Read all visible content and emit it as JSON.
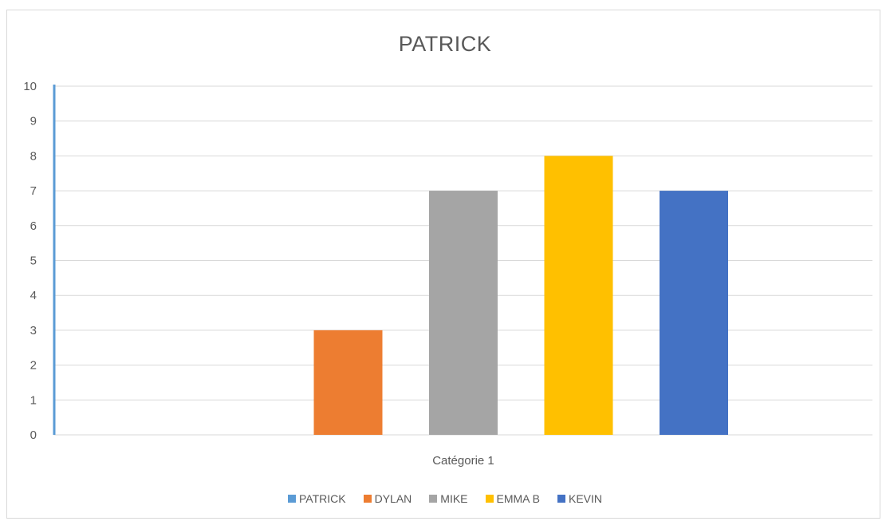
{
  "chart_data": {
    "type": "bar",
    "title": "PATRICK",
    "categories": [
      "Catégorie 1"
    ],
    "series": [
      {
        "name": "PATRICK",
        "values": [
          0
        ],
        "color": "#5B9BD5"
      },
      {
        "name": "DYLAN",
        "values": [
          3
        ],
        "color": "#ED7D31"
      },
      {
        "name": "MIKE",
        "values": [
          7
        ],
        "color": "#A5A5A5"
      },
      {
        "name": "EMMA B",
        "values": [
          8
        ],
        "color": "#FFC000"
      },
      {
        "name": "KEVIN",
        "values": [
          7
        ],
        "color": "#4472C4"
      }
    ],
    "ylim": [
      0,
      10
    ],
    "yticks": [
      "0",
      "1",
      "2",
      "3",
      "4",
      "5",
      "6",
      "7",
      "8",
      "9",
      "10"
    ],
    "grid": true,
    "legend_position": "bottom"
  }
}
